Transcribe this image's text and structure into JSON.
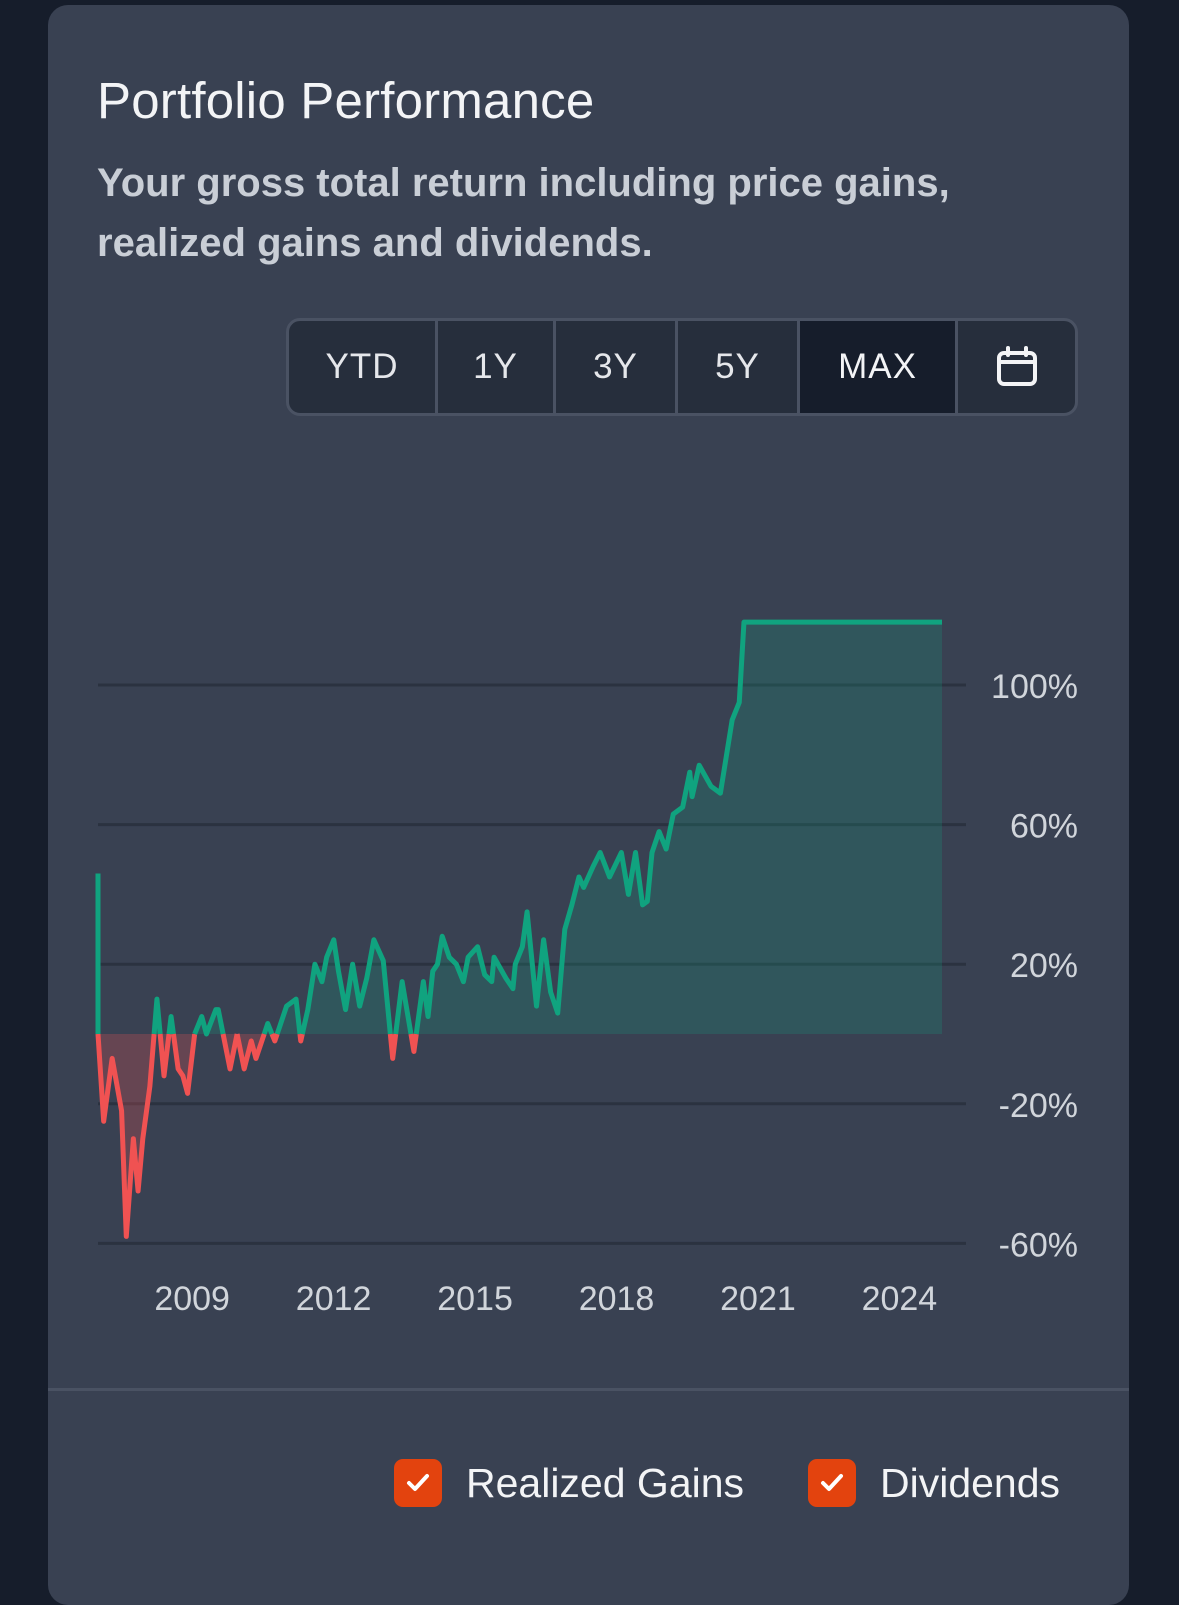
{
  "card": {
    "title": "Portfolio Performance",
    "subtitle": "Your gross total return including price gains, realized gains and dividends."
  },
  "range_selector": {
    "options": [
      {
        "label": "YTD",
        "active": false
      },
      {
        "label": "1Y",
        "active": false
      },
      {
        "label": "3Y",
        "active": false
      },
      {
        "label": "5Y",
        "active": false
      },
      {
        "label": "MAX",
        "active": true
      }
    ],
    "custom_icon": "calendar-icon"
  },
  "legend": {
    "items": [
      {
        "label": "Realized Gains",
        "checked": true,
        "icon": "check-icon"
      },
      {
        "label": "Dividends",
        "checked": true,
        "icon": "check-icon"
      }
    ]
  },
  "colors": {
    "positive": "#10a37f",
    "negative": "#f05252",
    "checkbox": "#e3430e",
    "grid": "#2b3240"
  },
  "chart_data": {
    "type": "area",
    "title": "",
    "xlabel": "",
    "ylabel": "",
    "x_ticks": [
      "2009",
      "2012",
      "2015",
      "2018",
      "2021",
      "2024"
    ],
    "y_ticks": [
      "100%",
      "60%",
      "20%",
      "-20%",
      "-60%"
    ],
    "xlim": [
      2008,
      2026
    ],
    "ylim": [
      -60,
      118
    ],
    "grid": true,
    "series": [
      {
        "x": [
          2008.0,
          2008.0,
          2008.12,
          2008.3,
          2008.5,
          2008.6,
          2008.75,
          2008.85,
          2008.95,
          2009.1,
          2009.25,
          2009.4,
          2009.55,
          2009.7,
          2009.8,
          2009.9,
          2010.05,
          2010.2,
          2010.3,
          2010.5,
          2010.55,
          2010.8,
          2010.95,
          2011.1,
          2011.25,
          2011.35,
          2011.6,
          2011.75,
          2011.85,
          2012.0,
          2012.2,
          2012.3,
          2012.45,
          2012.6,
          2012.75,
          2012.85,
          2013.0,
          2013.1,
          2013.25,
          2013.4,
          2013.55,
          2013.7,
          2013.85,
          2014.05,
          2014.25,
          2014.45,
          2014.7,
          2014.9,
          2015.0,
          2015.1,
          2015.2,
          2015.3,
          2015.45,
          2015.6,
          2015.75,
          2015.85,
          2016.05,
          2016.2,
          2016.35,
          2016.4,
          2016.65,
          2016.8,
          2016.85,
          2017.0,
          2017.1,
          2017.3,
          2017.45,
          2017.6,
          2017.75,
          2017.9,
          2018.05,
          2018.2,
          2018.3,
          2018.5,
          2018.65,
          2018.85,
          2019.1,
          2019.25,
          2019.4,
          2019.55,
          2019.65,
          2019.75,
          2019.9,
          2020.05,
          2020.2,
          2020.4,
          2020.55,
          2020.6,
          2020.75,
          2021.0,
          2021.2,
          2021.45,
          2021.6,
          2021.7,
          2021.8,
          2021.9,
          2022.05,
          2022.25,
          2022.45,
          2022.6,
          2022.75,
          2022.9,
          2023.0,
          2023.2,
          2023.45,
          2023.65,
          2023.8,
          2024.0,
          2024.2,
          2024.3,
          2024.5,
          2024.65,
          2024.85,
          2025.0,
          2025.3,
          2025.5,
          2025.7,
          2025.9
        ],
        "values": [
          46,
          0,
          -25,
          -7,
          -22,
          -58,
          -30,
          -45,
          -30,
          -15,
          10,
          -12,
          5,
          -10,
          -12,
          -17,
          0,
          5,
          0,
          7,
          7,
          -10,
          0,
          -10,
          -2,
          -7,
          3,
          -2,
          2,
          8,
          10,
          -2,
          7,
          20,
          15,
          22,
          27,
          18,
          7,
          20,
          8,
          16,
          27,
          21,
          -7,
          15,
          -5,
          15,
          5,
          18,
          20,
          28,
          22,
          20,
          15,
          22,
          25,
          17,
          15,
          22,
          16,
          13,
          20,
          25,
          35,
          8,
          27,
          12,
          6,
          30,
          37,
          45,
          42,
          48,
          52,
          45,
          52,
          40,
          52,
          37,
          38,
          52,
          58,
          53,
          63,
          65,
          75,
          68,
          77,
          71,
          69,
          90,
          95,
          118,
          118,
          118,
          118,
          118,
          118,
          118,
          118,
          118,
          118,
          118,
          118,
          118,
          118,
          118,
          118,
          118,
          118,
          118,
          118,
          118,
          118,
          118,
          118,
          118
        ]
      }
    ]
  }
}
